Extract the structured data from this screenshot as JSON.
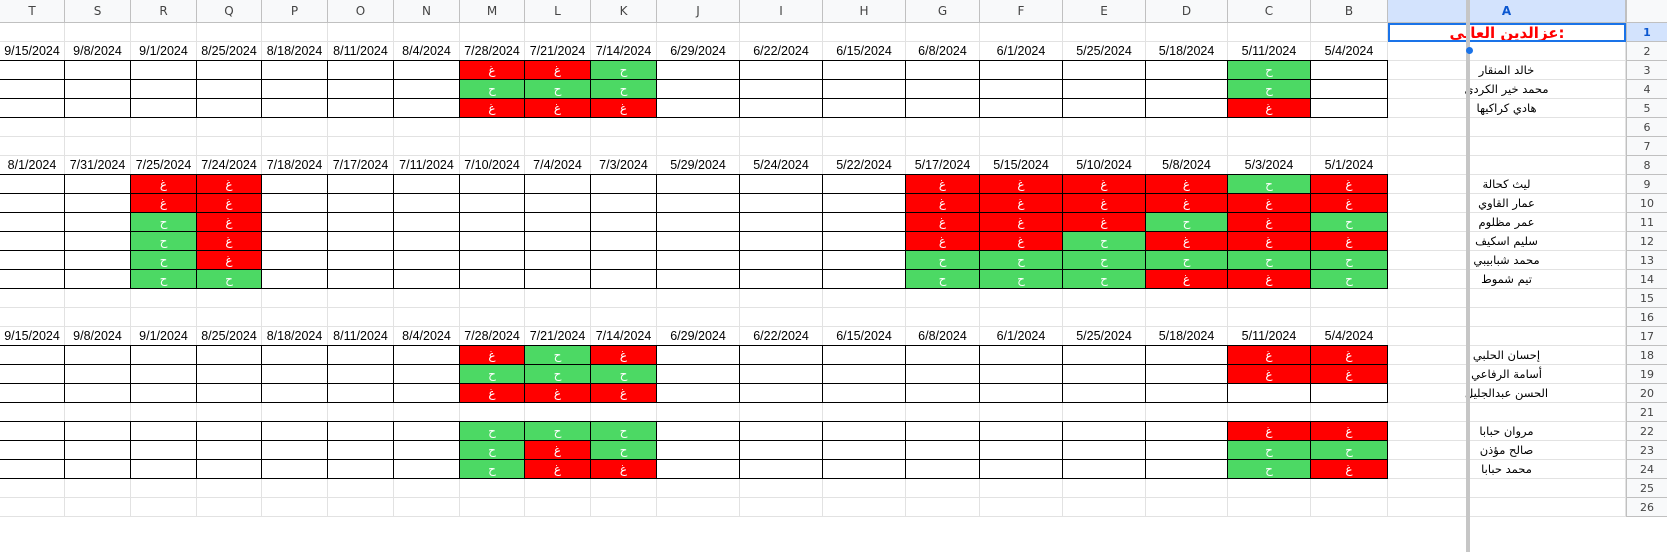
{
  "columns": [
    "T",
    "S",
    "R",
    "Q",
    "P",
    "O",
    "N",
    "M",
    "L",
    "K",
    "J",
    "I",
    "H",
    "G",
    "F",
    "E",
    "D",
    "C",
    "B",
    "A"
  ],
  "row_numbers": [
    "1",
    "2",
    "3",
    "4",
    "5",
    "6",
    "7",
    "8",
    "9",
    "10",
    "11",
    "12",
    "13",
    "14",
    "15",
    "16",
    "17",
    "18",
    "19",
    "20",
    "21",
    "22",
    "23",
    "24",
    "25",
    "26"
  ],
  "selected_cell": "A1",
  "title": "عزالدين العاني:",
  "marks": {
    "absent": "غ",
    "present": "ح"
  },
  "colors": {
    "absent": "#ff0000",
    "present": "#4cd964",
    "title": "#ff0000",
    "selection": "#1a73e8"
  },
  "section1": {
    "dates": [
      "9/15/2024",
      "9/8/2024",
      "9/1/2024",
      "8/25/2024",
      "8/18/2024",
      "8/11/2024",
      "8/4/2024",
      "7/28/2024",
      "7/21/2024",
      "7/14/2024",
      "6/29/2024",
      "6/22/2024",
      "6/15/2024",
      "6/8/2024",
      "6/1/2024",
      "5/25/2024",
      "5/18/2024",
      "5/11/2024",
      "5/4/2024"
    ],
    "rows": [
      {
        "name": "خالد المنقار",
        "marks": [
          "",
          "",
          "",
          "",
          "",
          "",
          "",
          "r",
          "r",
          "g",
          "",
          "",
          "",
          "",
          "",
          "",
          "",
          "g",
          ""
        ]
      },
      {
        "name": "محمد خير الكردي",
        "marks": [
          "",
          "",
          "",
          "",
          "",
          "",
          "",
          "g",
          "g",
          "g",
          "",
          "",
          "",
          "",
          "",
          "",
          "",
          "g",
          ""
        ]
      },
      {
        "name": "هادي كراكيها",
        "marks": [
          "",
          "",
          "",
          "",
          "",
          "",
          "",
          "r",
          "r",
          "r",
          "",
          "",
          "",
          "",
          "",
          "",
          "",
          "r",
          ""
        ]
      }
    ]
  },
  "section2": {
    "dates": [
      "8/1/2024",
      "7/31/2024",
      "7/25/2024",
      "7/24/2024",
      "7/18/2024",
      "7/17/2024",
      "7/11/2024",
      "7/10/2024",
      "7/4/2024",
      "7/3/2024",
      "5/29/2024",
      "5/24/2024",
      "5/22/2024",
      "5/17/2024",
      "5/15/2024",
      "5/10/2024",
      "5/8/2024",
      "5/3/2024",
      "5/1/2024"
    ],
    "rows": [
      {
        "name": "ليث كحالة",
        "marks": [
          "",
          "",
          "r",
          "r",
          "",
          "",
          "",
          "",
          "",
          "",
          "",
          "",
          "",
          "r",
          "r",
          "r",
          "r",
          "g",
          "r"
        ]
      },
      {
        "name": "عمار القاوي",
        "marks": [
          "",
          "",
          "r",
          "r",
          "",
          "",
          "",
          "",
          "",
          "",
          "",
          "",
          "",
          "r",
          "r",
          "r",
          "r",
          "r",
          "r"
        ]
      },
      {
        "name": "عمر مظلوم",
        "marks": [
          "",
          "",
          "g",
          "r",
          "",
          "",
          "",
          "",
          "",
          "",
          "",
          "",
          "",
          "r",
          "r",
          "r",
          "g",
          "r",
          "g"
        ]
      },
      {
        "name": "سليم اسكيف",
        "marks": [
          "",
          "",
          "g",
          "r",
          "",
          "",
          "",
          "",
          "",
          "",
          "",
          "",
          "",
          "r",
          "r",
          "g",
          "r",
          "r",
          "r"
        ]
      },
      {
        "name": "محمد شبابيبي",
        "marks": [
          "",
          "",
          "g",
          "r",
          "",
          "",
          "",
          "",
          "",
          "",
          "",
          "",
          "",
          "g",
          "g",
          "g",
          "g",
          "g",
          "g"
        ]
      },
      {
        "name": "تيم شموط",
        "marks": [
          "",
          "",
          "g",
          "g",
          "",
          "",
          "",
          "",
          "",
          "",
          "",
          "",
          "",
          "g",
          "g",
          "g",
          "r",
          "r",
          "g"
        ]
      }
    ]
  },
  "section3": {
    "dates": [
      "9/15/2024",
      "9/8/2024",
      "9/1/2024",
      "8/25/2024",
      "8/18/2024",
      "8/11/2024",
      "8/4/2024",
      "7/28/2024",
      "7/21/2024",
      "7/14/2024",
      "6/29/2024",
      "6/22/2024",
      "6/15/2024",
      "6/8/2024",
      "6/1/2024",
      "5/25/2024",
      "5/18/2024",
      "5/11/2024",
      "5/4/2024"
    ],
    "rows_a": [
      {
        "name": "إحسان الحلبي",
        "marks": [
          "",
          "",
          "",
          "",
          "",
          "",
          "",
          "r",
          "g",
          "r",
          "",
          "",
          "",
          "",
          "",
          "",
          "",
          "r",
          "r"
        ]
      },
      {
        "name": "أسامة الرفاعي",
        "marks": [
          "",
          "",
          "",
          "",
          "",
          "",
          "",
          "g",
          "g",
          "g",
          "",
          "",
          "",
          "",
          "",
          "",
          "",
          "r",
          "r"
        ]
      },
      {
        "name": "الحسن عبدالجليل",
        "marks": [
          "",
          "",
          "",
          "",
          "",
          "",
          "",
          "r",
          "r",
          "r",
          "",
          "",
          "",
          "",
          "",
          "",
          "",
          "",
          ""
        ]
      }
    ],
    "rows_b": [
      {
        "name": "مروان حبابا",
        "marks": [
          "",
          "",
          "",
          "",
          "",
          "",
          "",
          "g",
          "g",
          "g",
          "",
          "",
          "",
          "",
          "",
          "",
          "",
          "r",
          "r"
        ]
      },
      {
        "name": "صالح مؤذن",
        "marks": [
          "",
          "",
          "",
          "",
          "",
          "",
          "",
          "g",
          "r",
          "g",
          "",
          "",
          "",
          "",
          "",
          "",
          "",
          "g",
          "g"
        ]
      },
      {
        "name": "محمد حبابا",
        "marks": [
          "",
          "",
          "",
          "",
          "",
          "",
          "",
          "g",
          "r",
          "r",
          "",
          "",
          "",
          "",
          "",
          "",
          "",
          "g",
          "r"
        ]
      }
    ]
  }
}
